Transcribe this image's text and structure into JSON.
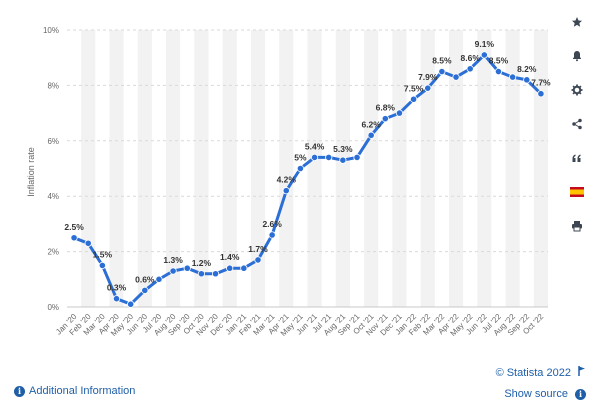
{
  "chart_data": {
    "type": "line",
    "ylabel": "Inflation rate",
    "ylim": [
      0,
      10
    ],
    "yticks": [
      "0%",
      "2%",
      "4%",
      "6%",
      "8%",
      "10%"
    ],
    "ytick_values": [
      0,
      2,
      4,
      6,
      8,
      10
    ],
    "grid": true,
    "categories": [
      "Jan '20",
      "Feb '20",
      "Mar '20",
      "Apr '20",
      "May '20",
      "Jun '20",
      "Jul '20",
      "Aug '20",
      "Sep '20",
      "Oct '20",
      "Nov '20",
      "Dec '20",
      "Jan '21",
      "Feb '21",
      "Mar '21",
      "Apr '21",
      "May '21",
      "Jun '21",
      "Jul '21",
      "Aug '21",
      "Sep '21",
      "Oct '21",
      "Nov '21",
      "Dec '21",
      "Jan '22",
      "Feb '22",
      "Mar '22",
      "Apr '22",
      "May '22",
      "Jun '22",
      "Jul '22",
      "Aug '22",
      "Sep '22",
      "Oct '22"
    ],
    "series": [
      {
        "color": "#2b6fd6",
        "values": [
          2.5,
          2.3,
          1.5,
          0.3,
          0.1,
          0.6,
          1.0,
          1.3,
          1.4,
          1.2,
          1.2,
          1.4,
          1.4,
          1.7,
          2.6,
          4.2,
          5.0,
          5.4,
          5.4,
          5.3,
          5.4,
          6.2,
          6.8,
          7.0,
          7.5,
          7.9,
          8.5,
          8.3,
          8.6,
          9.1,
          8.5,
          8.3,
          8.2,
          7.7
        ],
        "data_labels": [
          "2.5%",
          "",
          "1.5%",
          "0.3%",
          "",
          "0.6%",
          "",
          "1.3%",
          "",
          "1.2%",
          "",
          "1.4%",
          "",
          "1.7%",
          "2.6%",
          "4.2%",
          "5%",
          "5.4%",
          "",
          "5.3%",
          "",
          "6.2%",
          "6.8%",
          "",
          "7.5%",
          "7.9%",
          "8.5%",
          "",
          "8.6%",
          "9.1%",
          "8.5%",
          "",
          "8.2%",
          "7.7%"
        ]
      }
    ],
    "band_color": "#f2f2f2"
  },
  "footer": {
    "info_icon": "info-circle-icon",
    "additional_info": "Additional Information",
    "copyright": "© Statista 2022",
    "flag_icon": "flag-icon",
    "show_source": "Show source"
  },
  "sidebar": {
    "items": [
      {
        "icon": "star-icon"
      },
      {
        "icon": "bell-icon"
      },
      {
        "icon": "gear-icon"
      },
      {
        "icon": "share-icon"
      },
      {
        "icon": "quote-icon"
      },
      {
        "icon": "spain-flag-icon"
      },
      {
        "icon": "print-icon"
      }
    ]
  }
}
